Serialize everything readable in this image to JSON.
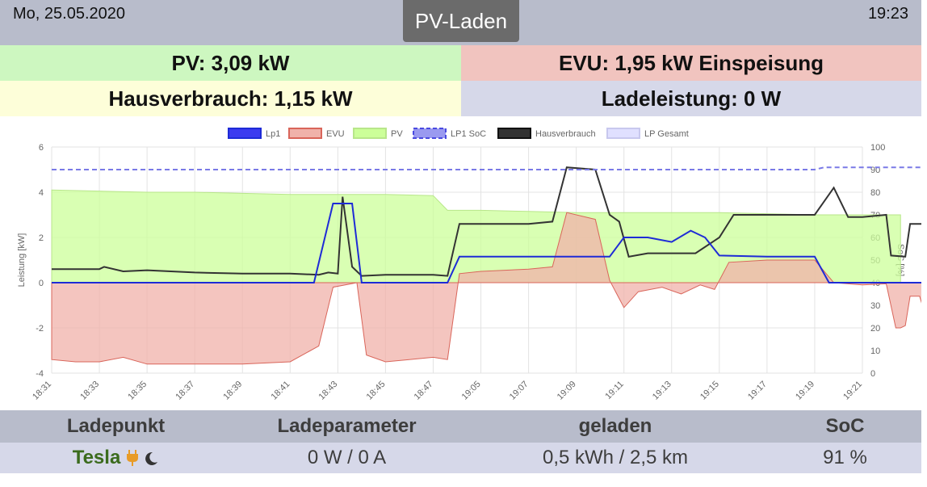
{
  "header": {
    "date": "Mo, 25.05.2020",
    "title": "PV-Laden",
    "time": "19:23"
  },
  "tiles": {
    "pv": "PV: 3,09 kW",
    "evu": "EVU: 1,95 kW Einspeisung",
    "hausverbrauch": "Hausverbrauch: 1,15 kW",
    "ladeleistung": "Ladeleistung: 0 W"
  },
  "colors": {
    "pv": "#ccff99",
    "evu": "#f0b2aa",
    "lp1": "#1e2bd6",
    "soc": "#7a7ae6",
    "haus": "#333333",
    "lp_gesamt": "#e0e0ff",
    "lade_name": "#3b6b1d",
    "plug": "#e89b28"
  },
  "chart_data": {
    "type": "line",
    "legend": [
      "Lp1",
      "EVU",
      "PV",
      "LP1 SoC",
      "Hausverbrauch",
      "LP Gesamt"
    ],
    "legend_position": "top",
    "ylabel_left": "Leistung [kW]",
    "ylabel_right": "SoC [%]",
    "ylim_left": [
      -4,
      6
    ],
    "ylim_right": [
      0,
      100
    ],
    "y_ticks_left": [
      "6",
      "4",
      "2",
      "0",
      "-2",
      "-4"
    ],
    "y_ticks_right": [
      "100",
      "90",
      "80",
      "70",
      "60",
      "50",
      "40",
      "30",
      "20",
      "10",
      "0"
    ],
    "x_ticks": [
      "18:31",
      "18:33",
      "18:35",
      "18:37",
      "18:39",
      "18:41",
      "18:43",
      "18:45",
      "18:47",
      "19:05",
      "19:07",
      "19:09",
      "19:11",
      "19:13",
      "19:15",
      "19:17",
      "19:19",
      "19:21"
    ],
    "grid": true,
    "series": [
      {
        "name": "PV",
        "kind": "area",
        "points": [
          [
            0,
            4.1
          ],
          [
            1,
            4.05
          ],
          [
            2,
            4.0
          ],
          [
            3,
            4.0
          ],
          [
            4,
            3.95
          ],
          [
            5,
            3.9
          ],
          [
            6,
            3.9
          ],
          [
            7,
            3.9
          ],
          [
            8,
            3.85
          ],
          [
            8.3,
            3.2
          ],
          [
            9,
            3.2
          ],
          [
            10,
            3.15
          ],
          [
            11,
            3.1
          ],
          [
            12,
            3.1
          ],
          [
            13,
            3.1
          ],
          [
            14,
            3.1
          ],
          [
            15,
            3.05
          ],
          [
            16,
            3.0
          ],
          [
            17,
            3.0
          ],
          [
            17.8,
            3.0
          ]
        ]
      },
      {
        "name": "EVU",
        "kind": "area",
        "points": [
          [
            0,
            -3.4
          ],
          [
            0.5,
            -3.5
          ],
          [
            1,
            -3.5
          ],
          [
            1.5,
            -3.3
          ],
          [
            2,
            -3.6
          ],
          [
            3,
            -3.6
          ],
          [
            4,
            -3.6
          ],
          [
            5,
            -3.5
          ],
          [
            5.6,
            -2.8
          ],
          [
            5.9,
            -0.2
          ],
          [
            6.4,
            0
          ],
          [
            6.6,
            -3.2
          ],
          [
            7,
            -3.5
          ],
          [
            7.5,
            -3.4
          ],
          [
            8,
            -3.3
          ],
          [
            8.3,
            -3.4
          ],
          [
            8.55,
            0.4
          ],
          [
            9,
            0.5
          ],
          [
            10,
            0.6
          ],
          [
            10.5,
            0.7
          ],
          [
            10.8,
            3.1
          ],
          [
            11.4,
            2.8
          ],
          [
            11.7,
            0.1
          ],
          [
            12,
            -1.1
          ],
          [
            12.3,
            -0.4
          ],
          [
            12.8,
            -0.2
          ],
          [
            13.2,
            -0.5
          ],
          [
            13.6,
            -0.1
          ],
          [
            13.9,
            -0.3
          ],
          [
            14.2,
            0.9
          ],
          [
            15,
            1.0
          ],
          [
            16,
            1.0
          ],
          [
            16.4,
            0.0
          ],
          [
            17,
            -0.1
          ],
          [
            17.5,
            -0.05
          ],
          [
            17.7,
            -2.0
          ],
          [
            17.8,
            -2.0
          ],
          [
            17.9,
            -1.9
          ],
          [
            18.0,
            -0.6
          ],
          [
            18.2,
            -0.6
          ],
          [
            18.4,
            -2.0
          ]
        ]
      },
      {
        "name": "Hausverbrauch",
        "kind": "line",
        "points": [
          [
            0,
            0.6
          ],
          [
            1,
            0.6
          ],
          [
            1.1,
            0.7
          ],
          [
            1.5,
            0.5
          ],
          [
            2,
            0.55
          ],
          [
            3,
            0.45
          ],
          [
            4,
            0.4
          ],
          [
            5,
            0.4
          ],
          [
            5.6,
            0.35
          ],
          [
            5.8,
            0.45
          ],
          [
            6.0,
            0.4
          ],
          [
            6.1,
            3.8
          ],
          [
            6.3,
            0.7
          ],
          [
            6.5,
            0.3
          ],
          [
            7,
            0.35
          ],
          [
            8,
            0.35
          ],
          [
            8.3,
            0.3
          ],
          [
            8.55,
            2.6
          ],
          [
            9,
            2.6
          ],
          [
            10,
            2.6
          ],
          [
            10.5,
            2.7
          ],
          [
            10.8,
            5.1
          ],
          [
            11.4,
            5.0
          ],
          [
            11.7,
            3.0
          ],
          [
            11.9,
            2.7
          ],
          [
            12.1,
            1.15
          ],
          [
            12.5,
            1.3
          ],
          [
            13,
            1.3
          ],
          [
            13.5,
            1.3
          ],
          [
            14,
            2.0
          ],
          [
            14.3,
            3.0
          ],
          [
            15,
            3.0
          ],
          [
            16,
            3.0
          ],
          [
            16.4,
            4.2
          ],
          [
            16.7,
            2.9
          ],
          [
            17,
            2.9
          ],
          [
            17.5,
            3.0
          ],
          [
            17.6,
            1.2
          ],
          [
            17.9,
            1.15
          ],
          [
            18.0,
            2.6
          ],
          [
            18.3,
            2.6
          ],
          [
            18.4,
            1.2
          ]
        ]
      },
      {
        "name": "Lp1",
        "kind": "line",
        "points": [
          [
            0,
            0
          ],
          [
            5,
            0
          ],
          [
            5.5,
            0
          ],
          [
            5.9,
            3.5
          ],
          [
            6.3,
            3.5
          ],
          [
            6.5,
            0
          ],
          [
            8,
            0
          ],
          [
            8.3,
            0
          ],
          [
            8.55,
            1.15
          ],
          [
            10,
            1.15
          ],
          [
            11,
            1.15
          ],
          [
            11.7,
            1.15
          ],
          [
            12,
            2.0
          ],
          [
            12.5,
            2.0
          ],
          [
            13,
            1.8
          ],
          [
            13.4,
            2.3
          ],
          [
            13.7,
            2.0
          ],
          [
            14,
            1.2
          ],
          [
            15,
            1.15
          ],
          [
            16,
            1.15
          ],
          [
            16.3,
            0
          ],
          [
            18.4,
            0
          ]
        ]
      },
      {
        "name": "LP1 SoC",
        "kind": "dashed",
        "points": [
          [
            0,
            90
          ],
          [
            16,
            90
          ],
          [
            16.2,
            91
          ],
          [
            18.4,
            91
          ]
        ]
      },
      {
        "name": "LP Gesamt",
        "kind": "line",
        "points": []
      }
    ]
  },
  "table": {
    "headers": [
      "Ladepunkt",
      "Ladeparameter",
      "geladen",
      "SoC"
    ],
    "row": {
      "ladepunkt": "Tesla",
      "ladeparameter": "0 W / 0 A",
      "geladen": "0,5 kWh / 2,5 km",
      "soc": "91 %"
    },
    "icons": [
      "plug-icon",
      "moon-icon"
    ]
  }
}
